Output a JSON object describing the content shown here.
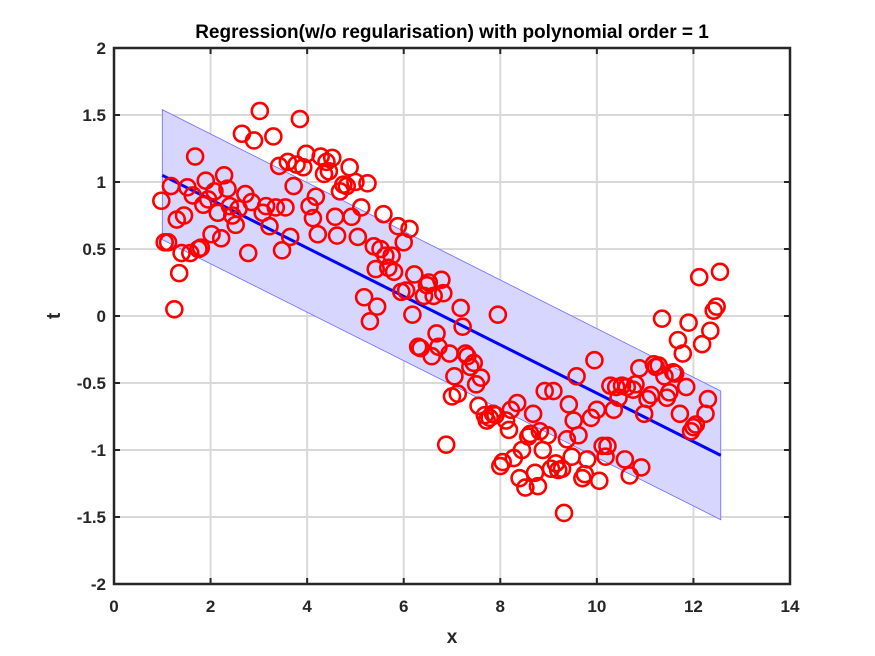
{
  "chart_data": {
    "type": "scatter",
    "title": "Regression(w/o regularisation) with polynomial order = 1",
    "xlabel": "x",
    "ylabel": "t",
    "xlim": [
      0,
      14
    ],
    "ylim": [
      -2,
      2
    ],
    "xticks": [
      "0",
      "2",
      "4",
      "6",
      "8",
      "10",
      "12",
      "14"
    ],
    "yticks": [
      "2",
      "1.5",
      "1",
      "0.5",
      "0",
      "-0.5",
      "-1",
      "-1.5",
      "-2"
    ],
    "grid": true,
    "colors": {
      "points": "#ff0000",
      "line": "#0000ff",
      "band": "#d6d6ff",
      "band_edge": "#6b6bff",
      "grid": "#d9d9d9",
      "axes": "#262626"
    },
    "fit_line": {
      "x": [
        1.0,
        12.566
      ],
      "y": [
        1.05,
        -1.04
      ]
    },
    "band": {
      "upper": [
        1.54,
        -0.56
      ],
      "lower": [
        0.57,
        -1.52
      ]
    },
    "points": [
      [
        0.98,
        0.86
      ],
      [
        1.05,
        0.55
      ],
      [
        1.12,
        0.55
      ],
      [
        1.18,
        0.97
      ],
      [
        1.25,
        0.05
      ],
      [
        1.3,
        0.72
      ],
      [
        1.35,
        0.32
      ],
      [
        1.4,
        0.47
      ],
      [
        1.45,
        0.75
      ],
      [
        1.52,
        0.96
      ],
      [
        1.58,
        0.47
      ],
      [
        1.63,
        0.9
      ],
      [
        1.68,
        1.19
      ],
      [
        1.75,
        0.5
      ],
      [
        1.8,
        0.51
      ],
      [
        1.85,
        0.83
      ],
      [
        1.9,
        1.01
      ],
      [
        1.95,
        0.87
      ],
      [
        2.02,
        0.61
      ],
      [
        2.08,
        0.93
      ],
      [
        2.15,
        0.77
      ],
      [
        2.22,
        0.58
      ],
      [
        2.28,
        1.05
      ],
      [
        2.35,
        0.95
      ],
      [
        2.4,
        0.82
      ],
      [
        2.45,
        0.75
      ],
      [
        2.52,
        0.68
      ],
      [
        2.58,
        0.8
      ],
      [
        2.65,
        1.36
      ],
      [
        2.72,
        0.91
      ],
      [
        2.78,
        0.47
      ],
      [
        2.85,
        0.85
      ],
      [
        2.9,
        1.31
      ],
      [
        3.02,
        1.53
      ],
      [
        3.08,
        0.77
      ],
      [
        3.15,
        0.82
      ],
      [
        3.22,
        0.67
      ],
      [
        3.3,
        1.34
      ],
      [
        3.35,
        0.81
      ],
      [
        3.42,
        1.12
      ],
      [
        3.48,
        0.49
      ],
      [
        3.55,
        0.81
      ],
      [
        3.6,
        1.15
      ],
      [
        3.65,
        0.59
      ],
      [
        3.72,
        0.97
      ],
      [
        3.78,
        1.13
      ],
      [
        3.85,
        1.47
      ],
      [
        3.92,
        1.11
      ],
      [
        3.98,
        1.21
      ],
      [
        4.05,
        0.82
      ],
      [
        4.12,
        0.73
      ],
      [
        4.18,
        0.89
      ],
      [
        4.22,
        0.61
      ],
      [
        4.28,
        1.19
      ],
      [
        4.35,
        1.06
      ],
      [
        4.4,
        1.15
      ],
      [
        4.45,
        1.08
      ],
      [
        4.52,
        1.18
      ],
      [
        4.58,
        0.74
      ],
      [
        4.62,
        0.6
      ],
      [
        4.68,
        0.93
      ],
      [
        4.75,
        0.98
      ],
      [
        4.82,
        0.97
      ],
      [
        4.88,
        1.11
      ],
      [
        4.92,
        0.74
      ],
      [
        5.0,
        1.0
      ],
      [
        5.05,
        0.59
      ],
      [
        5.12,
        0.81
      ],
      [
        5.18,
        0.14
      ],
      [
        5.25,
        0.99
      ],
      [
        5.3,
        -0.04
      ],
      [
        5.38,
        0.52
      ],
      [
        5.42,
        0.35
      ],
      [
        5.45,
        0.07
      ],
      [
        5.52,
        0.5
      ],
      [
        5.58,
        0.76
      ],
      [
        5.62,
        0.45
      ],
      [
        5.68,
        0.36
      ],
      [
        5.75,
        0.45
      ],
      [
        5.8,
        0.33
      ],
      [
        5.88,
        0.67
      ],
      [
        5.95,
        0.18
      ],
      [
        6.0,
        0.55
      ],
      [
        6.05,
        0.19
      ],
      [
        6.12,
        0.65
      ],
      [
        6.18,
        0.01
      ],
      [
        6.22,
        0.31
      ],
      [
        6.3,
        -0.23
      ],
      [
        6.35,
        -0.24
      ],
      [
        6.42,
        0.15
      ],
      [
        6.48,
        0.23
      ],
      [
        6.52,
        0.25
      ],
      [
        6.58,
        -0.3
      ],
      [
        6.62,
        0.15
      ],
      [
        6.68,
        -0.13
      ],
      [
        6.72,
        -0.23
      ],
      [
        6.78,
        0.27
      ],
      [
        6.82,
        0.17
      ],
      [
        6.88,
        -0.96
      ],
      [
        6.95,
        -0.28
      ],
      [
        7.0,
        -0.6
      ],
      [
        7.05,
        -0.45
      ],
      [
        7.12,
        -0.58
      ],
      [
        7.18,
        0.06
      ],
      [
        7.22,
        -0.08
      ],
      [
        7.28,
        -0.28
      ],
      [
        7.32,
        -0.3
      ],
      [
        7.38,
        -0.38
      ],
      [
        7.45,
        -0.35
      ],
      [
        7.5,
        -0.51
      ],
      [
        7.55,
        -0.67
      ],
      [
        7.6,
        -0.46
      ],
      [
        7.68,
        -0.74
      ],
      [
        7.72,
        -0.78
      ],
      [
        7.78,
        -0.76
      ],
      [
        7.85,
        -0.73
      ],
      [
        7.9,
        -0.74
      ],
      [
        7.95,
        0.01
      ],
      [
        8.0,
        -1.12
      ],
      [
        8.05,
        -1.09
      ],
      [
        8.12,
        -0.78
      ],
      [
        8.18,
        -0.85
      ],
      [
        8.22,
        -0.7
      ],
      [
        8.28,
        -1.06
      ],
      [
        8.35,
        -0.65
      ],
      [
        8.4,
        -1.21
      ],
      [
        8.45,
        -1.0
      ],
      [
        8.52,
        -1.28
      ],
      [
        8.58,
        -0.9
      ],
      [
        8.62,
        -0.88
      ],
      [
        8.68,
        -0.73
      ],
      [
        8.72,
        -1.17
      ],
      [
        8.78,
        -1.27
      ],
      [
        8.82,
        -0.86
      ],
      [
        8.88,
        -1.0
      ],
      [
        8.92,
        -0.56
      ],
      [
        8.98,
        -0.89
      ],
      [
        9.05,
        -1.14
      ],
      [
        9.1,
        -0.56
      ],
      [
        9.15,
        -1.1
      ],
      [
        9.2,
        -1.15
      ],
      [
        9.28,
        -1.14
      ],
      [
        9.32,
        -1.47
      ],
      [
        9.38,
        -0.92
      ],
      [
        9.42,
        -0.66
      ],
      [
        9.48,
        -1.05
      ],
      [
        9.52,
        -0.78
      ],
      [
        9.58,
        -0.45
      ],
      [
        9.62,
        -0.89
      ],
      [
        9.7,
        -1.21
      ],
      [
        9.75,
        -1.18
      ],
      [
        9.8,
        -1.07
      ],
      [
        9.88,
        -0.76
      ],
      [
        9.95,
        -0.33
      ],
      [
        10.0,
        -0.7
      ],
      [
        10.05,
        -1.23
      ],
      [
        10.12,
        -0.97
      ],
      [
        10.18,
        -1.05
      ],
      [
        10.22,
        -0.97
      ],
      [
        10.28,
        -0.52
      ],
      [
        10.35,
        -0.7
      ],
      [
        10.4,
        -0.53
      ],
      [
        10.45,
        -0.61
      ],
      [
        10.52,
        -0.52
      ],
      [
        10.58,
        -1.07
      ],
      [
        10.62,
        -0.53
      ],
      [
        10.68,
        -1.19
      ],
      [
        10.75,
        -0.55
      ],
      [
        10.8,
        -0.51
      ],
      [
        10.88,
        -0.39
      ],
      [
        10.92,
        -1.13
      ],
      [
        10.98,
        -0.73
      ],
      [
        11.05,
        -0.62
      ],
      [
        11.12,
        -0.59
      ],
      [
        11.18,
        -0.36
      ],
      [
        11.22,
        -0.38
      ],
      [
        11.28,
        -0.37
      ],
      [
        11.35,
        -0.02
      ],
      [
        11.4,
        -0.45
      ],
      [
        11.45,
        -0.61
      ],
      [
        11.5,
        -0.57
      ],
      [
        11.58,
        -0.42
      ],
      [
        11.62,
        -0.43
      ],
      [
        11.68,
        -0.18
      ],
      [
        11.72,
        -0.73
      ],
      [
        11.78,
        -0.28
      ],
      [
        11.85,
        -0.53
      ],
      [
        11.9,
        -0.05
      ],
      [
        11.95,
        -0.86
      ],
      [
        12.0,
        -0.83
      ],
      [
        12.05,
        -0.81
      ],
      [
        12.12,
        0.29
      ],
      [
        12.18,
        -0.21
      ],
      [
        12.25,
        -0.73
      ],
      [
        12.3,
        -0.62
      ],
      [
        12.35,
        -0.11
      ],
      [
        12.42,
        0.04
      ],
      [
        12.48,
        0.07
      ],
      [
        12.55,
        0.33
      ]
    ]
  }
}
